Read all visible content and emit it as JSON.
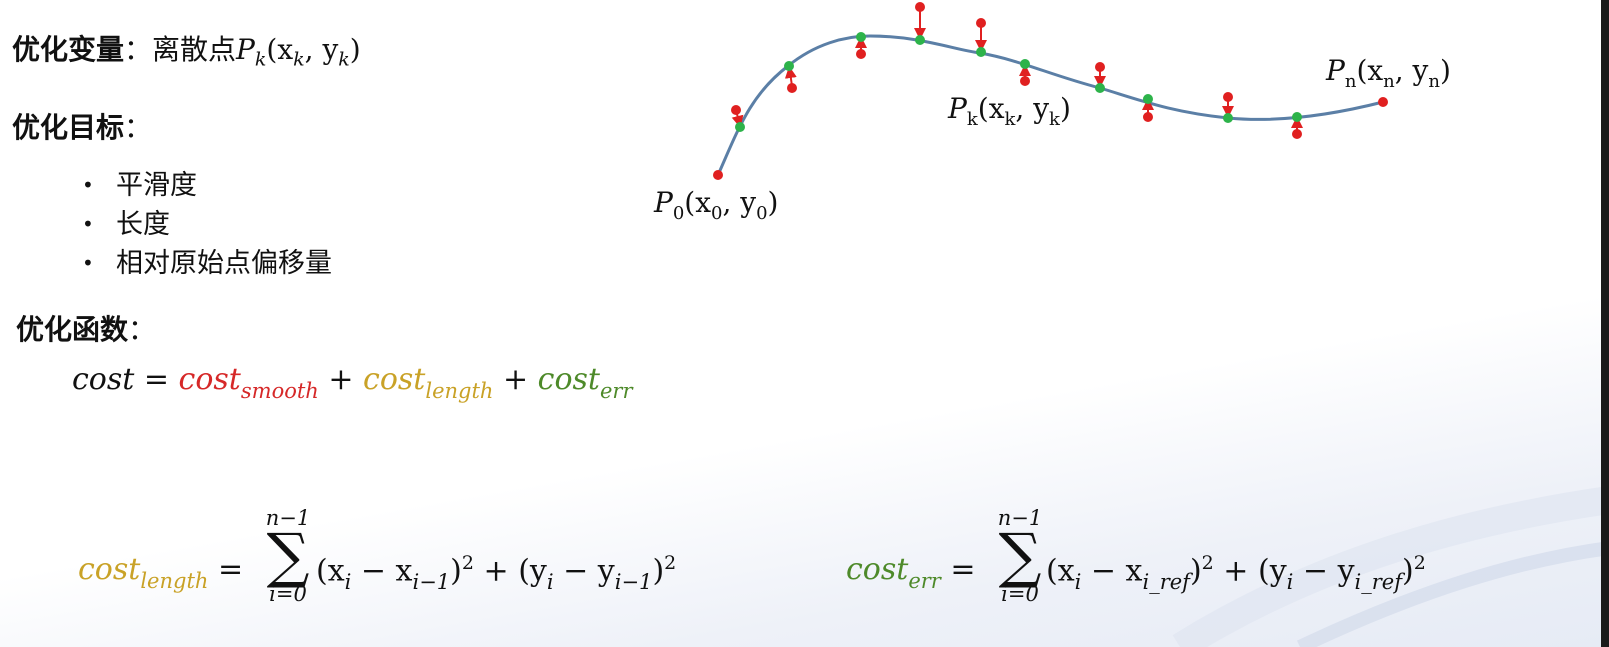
{
  "variables": {
    "label": "优化变量",
    "colon": "：",
    "desc": "离散点",
    "symbol": "P",
    "sub": "k",
    "coords": "(x",
    "coords_sub1": "k",
    "coords_mid": ", y",
    "coords_sub2": "k",
    "coords_end": ")"
  },
  "objectives": {
    "label": "优化目标",
    "colon": "：",
    "items": [
      "平滑度",
      "长度",
      "相对原始点偏移量"
    ]
  },
  "function": {
    "label": "优化函数",
    "colon": "："
  },
  "cost_equation": {
    "lhs": "cost",
    "eq": " = ",
    "smooth_base": "cost",
    "smooth_sub": "smooth",
    "plus1": " + ",
    "length_base": "cost",
    "length_sub": "length",
    "plus2": " + ",
    "err_base": "cost",
    "err_sub": "err"
  },
  "length_equation": {
    "lhs_base": "cost",
    "lhs_sub": "length",
    "eq": " = ",
    "sum_top": "n−1",
    "sum_symbol": "∑",
    "sum_bottom": "i=0",
    "term1": "(x",
    "term1_sub": "i",
    "term1_mid": " − x",
    "term1_sub2": "i−1",
    "term1_close": ")",
    "term1_pow": "2",
    "plus": " + ",
    "term2": "(y",
    "term2_sub": "i",
    "term2_mid": " − y",
    "term2_sub2": "i−1",
    "term2_close": ")",
    "term2_pow": "2"
  },
  "err_equation": {
    "lhs_base": "cost",
    "lhs_sub": "err",
    "eq": " = ",
    "sum_top": "n−1",
    "sum_symbol": "∑",
    "sum_bottom": "i=0",
    "term1": "(x",
    "term1_sub": "i",
    "term1_mid": " − x",
    "term1_sub2": "i_ref",
    "term1_close": ")",
    "term1_pow": "2",
    "plus": " + ",
    "term2": "(y",
    "term2_sub": "i",
    "term2_mid": " − y",
    "term2_sub2": "i_ref",
    "term2_close": ")",
    "term2_pow": "2"
  },
  "diagram": {
    "curve_color": "#5b7fa6",
    "point_color_original": "#e02020",
    "point_color_optimized": "#2db34a",
    "label_p0": "P",
    "label_p0_sub": "0",
    "label_p0_coords": "(x",
    "label_p0_c_sub1": "0",
    "label_p0_mid": ", y",
    "label_p0_c_sub2": "0",
    "label_p0_end": ")",
    "label_pk": "P",
    "label_pk_sub": "k",
    "label_pk_coords": "(x",
    "label_pk_c_sub1": "k",
    "label_pk_mid": ", y",
    "label_pk_c_sub2": "k",
    "label_pk_end": ")",
    "label_pn": "P",
    "label_pn_sub": "n",
    "label_pn_coords": "(x",
    "label_pn_c_sub1": "n",
    "label_pn_mid": ", y",
    "label_pn_c_sub2": "n",
    "label_pn_end": ")"
  }
}
